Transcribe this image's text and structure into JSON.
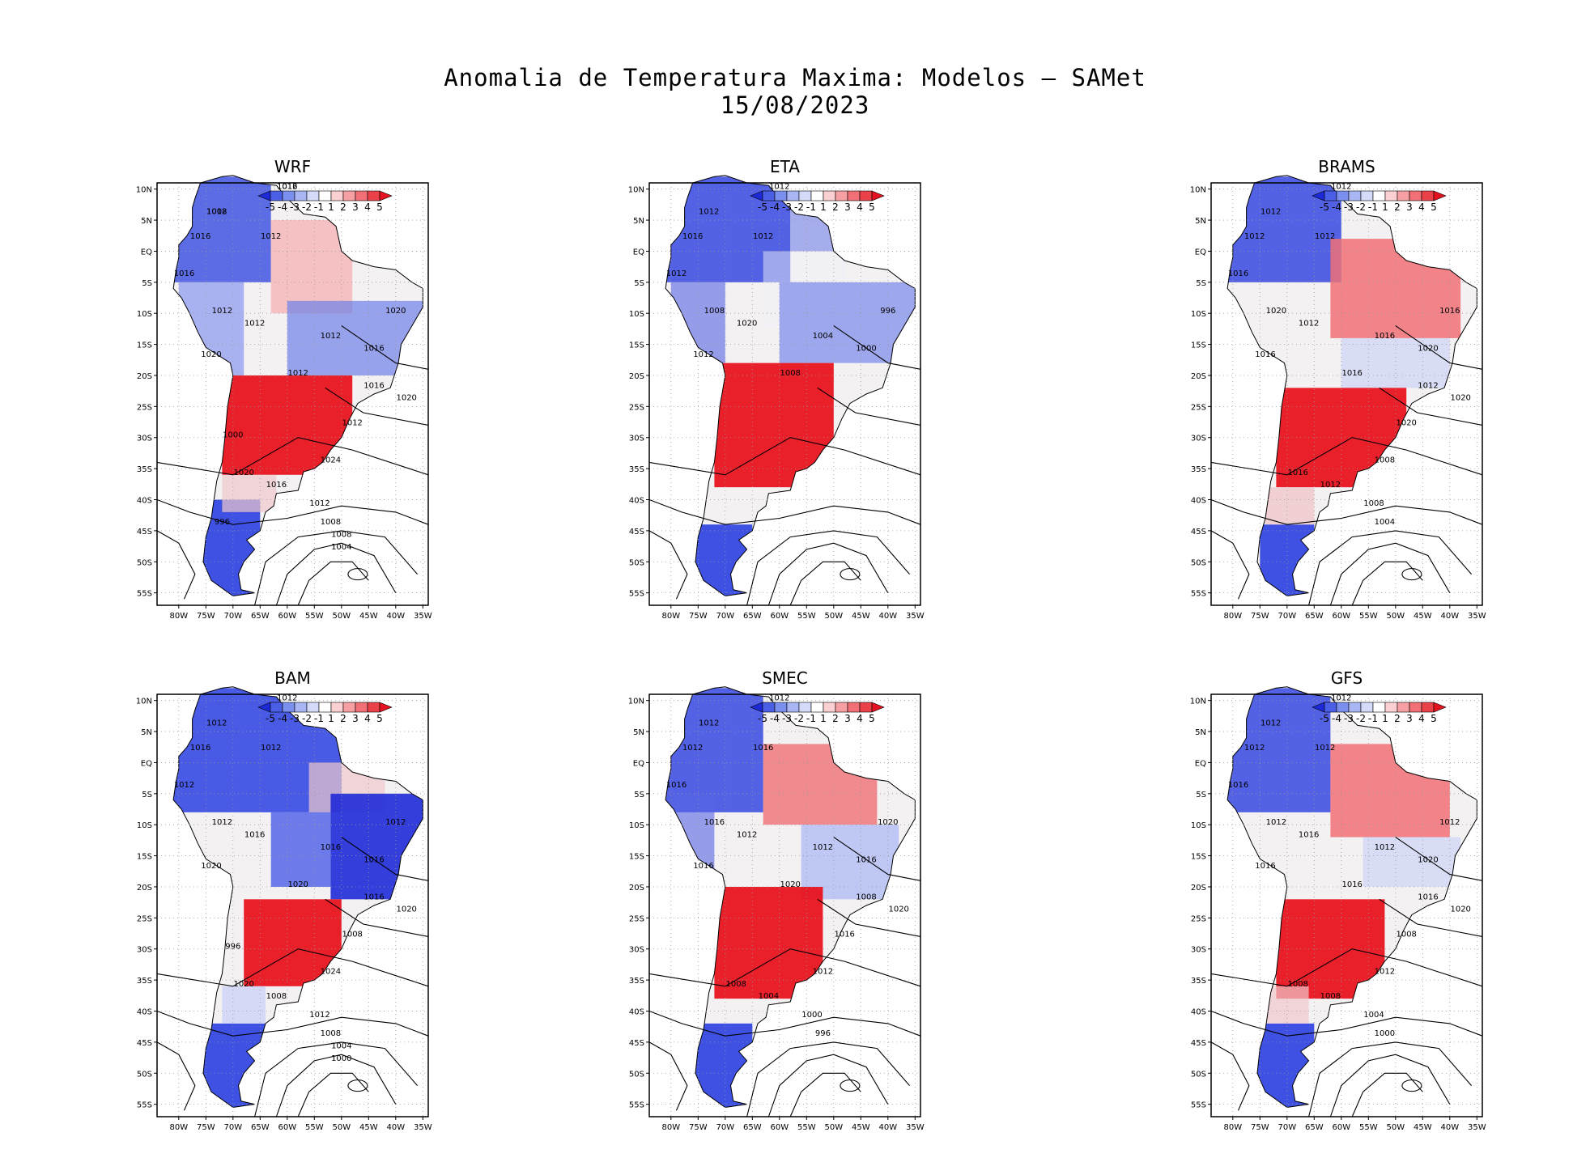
{
  "title": {
    "line1": "Anomalia de Temperatura Maxima: Modelos — SAMet",
    "line2": "15/08/2023"
  },
  "colors": {
    "warm": "#e8141e",
    "warm_light": "#f6a4a6",
    "cold": "#2a3fe0",
    "cold_light": "#a9b6f2",
    "neutral": "#f4f1f3",
    "contour": "#000000",
    "grid": "#9a9a9a"
  },
  "axes": {
    "lat_ticks": [
      "10N",
      "5N",
      "EQ",
      "5S",
      "10S",
      "15S",
      "20S",
      "25S",
      "30S",
      "35S",
      "40S",
      "45S",
      "50S",
      "55S"
    ],
    "lon_ticks": [
      "80W",
      "75W",
      "70W",
      "65W",
      "60W",
      "55W",
      "50W",
      "45W",
      "40W",
      "35W"
    ],
    "lat_range": [
      11,
      -57
    ],
    "lon_range": [
      -84,
      -34
    ]
  },
  "colorbar": {
    "labels": [
      "-5",
      "-4",
      "-3",
      "-2",
      "-1",
      "1",
      "2",
      "3",
      "4",
      "5"
    ],
    "colors": [
      "#1e2ad8",
      "#4a5ee6",
      "#7b8fee",
      "#a8b7f3",
      "#d3dbf8",
      "#ffffff",
      "#fbd0d2",
      "#f6a0a4",
      "#f07076",
      "#ea4048",
      "#e41220"
    ]
  },
  "panels": [
    {
      "name": "WRF",
      "label": "WRF",
      "contours": [
        "1012",
        "1012",
        "1016",
        "1012",
        "1016",
        "1012",
        "1012",
        "1020",
        "1012",
        "1012",
        "1016",
        "1020",
        "1016",
        "1020",
        "1012",
        "1024",
        "1020",
        "1016",
        "1012",
        "1008",
        "1008",
        "1004",
        "1000",
        "996",
        "1016",
        "1008"
      ]
    },
    {
      "name": "ETA",
      "label": "ETA",
      "contours": [
        "1012",
        "1012",
        "1016",
        "1012",
        "1012",
        "1008",
        "1020",
        "1012",
        "1008",
        "1004",
        "1000",
        "996"
      ]
    },
    {
      "name": "BRAMS",
      "label": "BRAMS",
      "contours": [
        "1012",
        "1012",
        "1012",
        "1012",
        "1016",
        "1020",
        "1012",
        "1016",
        "1016",
        "1016",
        "1020",
        "1016",
        "1012",
        "1020",
        "1020",
        "1008",
        "1016",
        "1012",
        "1008",
        "1004"
      ]
    },
    {
      "name": "BAM",
      "label": "BAM",
      "contours": [
        "1012",
        "1012",
        "1016",
        "1012",
        "1012",
        "1012",
        "1016",
        "1020",
        "1020",
        "1016",
        "1016",
        "1012",
        "1016",
        "1020",
        "1008",
        "1024",
        "1020",
        "1008",
        "1012",
        "1008",
        "1004",
        "1000",
        "996"
      ]
    },
    {
      "name": "SMEC",
      "label": "SMEC",
      "contours": [
        "1012",
        "1012",
        "1012",
        "1016",
        "1016",
        "1016",
        "1012",
        "1016",
        "1020",
        "1012",
        "1016",
        "1020",
        "1008",
        "1020",
        "1016",
        "1012",
        "1008",
        "1004",
        "1000",
        "996"
      ]
    },
    {
      "name": "GFS",
      "label": "GFS",
      "contours": [
        "1012",
        "1012",
        "1012",
        "1012",
        "1016",
        "1012",
        "1016",
        "1016",
        "1016",
        "1012",
        "1020",
        "1012",
        "1016",
        "1020",
        "1008",
        "1012",
        "1008",
        "1008",
        "1004",
        "1000"
      ]
    }
  ]
}
